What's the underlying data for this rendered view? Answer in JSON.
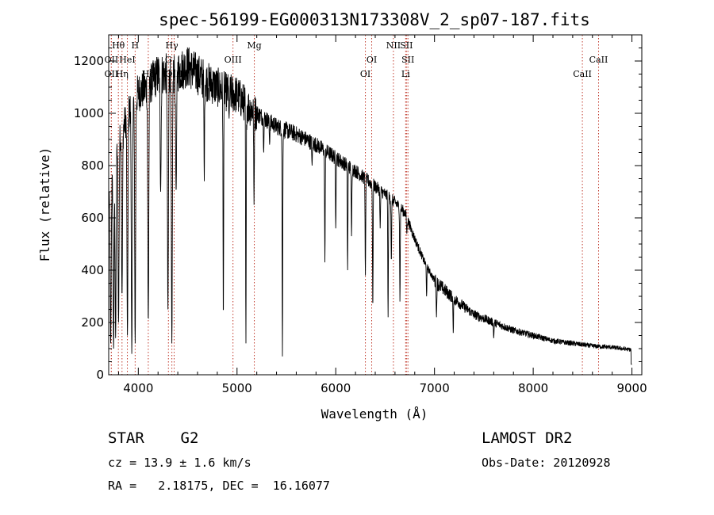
{
  "chart_data": {
    "type": "line",
    "title": "spec-56199-EG000313N173308V_2_sp07-187.fits",
    "xlabel": "Wavelength (Å)",
    "ylabel": "Flux (relative)",
    "xlim": [
      3700,
      9100
    ],
    "ylim": [
      0,
      1300
    ],
    "xticks": [
      4000,
      5000,
      6000,
      7000,
      8000,
      9000
    ],
    "yticks": [
      0,
      200,
      400,
      600,
      800,
      1000,
      1200
    ],
    "grid": false,
    "continuum": [
      [
        3700,
        650
      ],
      [
        3800,
        900
      ],
      [
        3900,
        1000
      ],
      [
        4000,
        1080
      ],
      [
        4100,
        1100
      ],
      [
        4200,
        1150
      ],
      [
        4300,
        1150
      ],
      [
        4400,
        1160
      ],
      [
        4500,
        1180
      ],
      [
        4600,
        1150
      ],
      [
        4700,
        1120
      ],
      [
        4800,
        1100
      ],
      [
        4900,
        1080
      ],
      [
        5000,
        1070
      ],
      [
        5100,
        1030
      ],
      [
        5200,
        1000
      ],
      [
        5400,
        950
      ],
      [
        5600,
        920
      ],
      [
        5800,
        880
      ],
      [
        6000,
        830
      ],
      [
        6200,
        780
      ],
      [
        6400,
        720
      ],
      [
        6600,
        660
      ],
      [
        6700,
        620
      ],
      [
        6800,
        520
      ],
      [
        6900,
        430
      ],
      [
        7000,
        360
      ],
      [
        7200,
        290
      ],
      [
        7400,
        230
      ],
      [
        7600,
        200
      ],
      [
        7800,
        170
      ],
      [
        8000,
        150
      ],
      [
        8200,
        130
      ],
      [
        8400,
        120
      ],
      [
        8600,
        110
      ],
      [
        8800,
        105
      ],
      [
        9000,
        95
      ]
    ],
    "absorption": [
      [
        3720,
        120
      ],
      [
        3750,
        100
      ],
      [
        3770,
        140
      ],
      [
        3800,
        200
      ],
      [
        3835,
        300
      ],
      [
        3890,
        150
      ],
      [
        3934,
        80
      ],
      [
        3968,
        120
      ],
      [
        4101,
        200
      ],
      [
        4226,
        700
      ],
      [
        4300,
        250
      ],
      [
        4340,
        120
      ],
      [
        4383,
        700
      ],
      [
        4668,
        740
      ],
      [
        4861,
        200
      ],
      [
        4920,
        980
      ],
      [
        5090,
        120
      ],
      [
        5172,
        650
      ],
      [
        5270,
        850
      ],
      [
        5330,
        880
      ],
      [
        5460,
        70
      ],
      [
        5760,
        800
      ],
      [
        5890,
        430
      ],
      [
        6000,
        560
      ],
      [
        6120,
        400
      ],
      [
        6160,
        530
      ],
      [
        6300,
        380
      ],
      [
        6375,
        250
      ],
      [
        6450,
        560
      ],
      [
        6530,
        220
      ],
      [
        6563,
        430
      ],
      [
        6650,
        280
      ],
      [
        6720,
        540
      ],
      [
        6920,
        300
      ],
      [
        7020,
        220
      ],
      [
        7190,
        160
      ],
      [
        7600,
        140
      ]
    ],
    "series": [
      {
        "values": []
      }
    ],
    "lines": [
      {
        "label": "Hθ",
        "wavelength": 3798,
        "row": 0,
        "color": "#c0392b"
      },
      {
        "label": "H",
        "wavelength": 3968,
        "row": 0,
        "color": "#c0392b"
      },
      {
        "label": "Hγ",
        "wavelength": 4340,
        "row": 0,
        "color": "#c0392b"
      },
      {
        "label": "Mg",
        "wavelength": 5175,
        "row": 0,
        "color": "#c0392b"
      },
      {
        "label": "NII",
        "wavelength": 6584,
        "row": 0,
        "color": "#c0392b"
      },
      {
        "label": "SII",
        "wavelength": 6716,
        "row": 0,
        "color": "#c0392b"
      },
      {
        "label": "OII",
        "wavelength": 3727,
        "row": 1,
        "color": "#c0392b"
      },
      {
        "label": "HeI",
        "wavelength": 3889,
        "row": 1,
        "color": "#c0392b"
      },
      {
        "label": "G",
        "wavelength": 4305,
        "row": 1,
        "color": "#c0392b"
      },
      {
        "label": "OIII",
        "wavelength": 4959,
        "row": 1,
        "color": "#c0392b"
      },
      {
        "label": "OI",
        "wavelength": 6364,
        "row": 1,
        "color": "#c0392b"
      },
      {
        "label": "SII",
        "wavelength": 6731,
        "row": 1,
        "color": "#c0392b"
      },
      {
        "label": "CaII",
        "wavelength": 8662,
        "row": 1,
        "color": "#c0392b"
      },
      {
        "label": "OII",
        "wavelength": 3727,
        "row": 2,
        "color": "#c0392b"
      },
      {
        "label": "Hη",
        "wavelength": 3835,
        "row": 2,
        "color": "#c0392b"
      },
      {
        "label": "Hδ",
        "wavelength": 4101,
        "row": 2,
        "color": "#c0392b"
      },
      {
        "label": "OIII",
        "wavelength": 4363,
        "row": 2,
        "color": "#c0392b"
      },
      {
        "label": "OI",
        "wavelength": 6300,
        "row": 2,
        "color": "#c0392b"
      },
      {
        "label": "Li",
        "wavelength": 6708,
        "row": 2,
        "color": "#c0392b"
      },
      {
        "label": "CaII",
        "wavelength": 8498,
        "row": 2,
        "color": "#c0392b"
      }
    ]
  },
  "info": {
    "class": "STAR    G2",
    "survey": "LAMOST DR2",
    "cz": "cz = 13.9 ± 1.6 km/s",
    "obs_date": "Obs-Date: 20120928",
    "coords": "RA =   2.18175, DEC =  16.16077"
  }
}
